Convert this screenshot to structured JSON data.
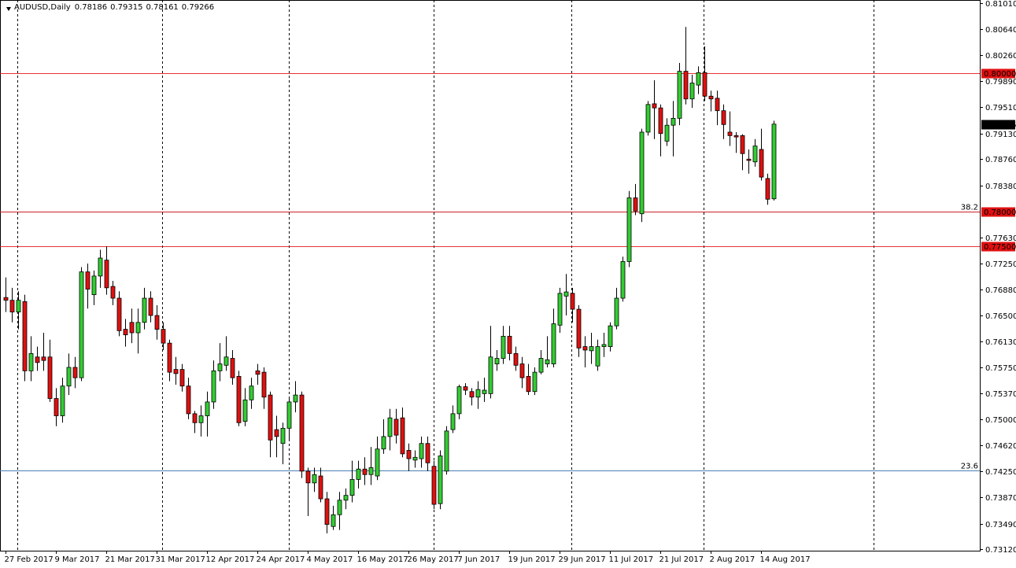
{
  "chart_data": {
    "type": "candlestick",
    "title": "AUDUSD,Daily",
    "up_color": "#32cd32",
    "down_color": "#e01010",
    "wick_color": "#000000",
    "grid": false,
    "categories": [
      "27 Feb 2017",
      null,
      null,
      null,
      null,
      null,
      null,
      null,
      "9 Mar 2017",
      null,
      null,
      null,
      null,
      null,
      null,
      null,
      "21 Mar 2017",
      null,
      null,
      null,
      null,
      null,
      null,
      null,
      "31 Mar 2017",
      null,
      null,
      null,
      null,
      null,
      null,
      null,
      "12 Apr 2017",
      null,
      null,
      null,
      null,
      null,
      null,
      null,
      "24 Apr 2017",
      null,
      null,
      null,
      null,
      null,
      null,
      null,
      "4 May 2017",
      null,
      null,
      null,
      null,
      null,
      null,
      null,
      "16 May 2017",
      null,
      null,
      null,
      null,
      null,
      null,
      null,
      "26 May 2017",
      null,
      null,
      null,
      null,
      null,
      null,
      null,
      "7 Jun 2017",
      null,
      null,
      null,
      null,
      null,
      null,
      null,
      "19 Jun 2017",
      null,
      null,
      null,
      null,
      null,
      null,
      null,
      "29 Jun 2017",
      null,
      null,
      null,
      null,
      null,
      null,
      null,
      "11 Jul 2017",
      null,
      null,
      null,
      null,
      null,
      null,
      null,
      "21 Jul 2017",
      null,
      null,
      null,
      null,
      null,
      null,
      null,
      "2 Aug 2017",
      null,
      null,
      null,
      null,
      null,
      null,
      null,
      "14 Aug 2017",
      null,
      null
    ],
    "open": [
      0.7676,
      0.7672,
      0.7655,
      0.767,
      0.757,
      0.759,
      0.759,
      0.759,
      0.753,
      0.7505,
      0.7548,
      0.7575,
      0.756,
      0.7713,
      0.768,
      0.7707,
      0.773,
      0.7692,
      0.7675,
      0.763,
      0.764,
      0.7625,
      0.764,
      0.7675,
      0.765,
      0.763,
      0.761,
      0.7572,
      0.7572,
      0.7548,
      0.7508,
      0.7495,
      0.7505,
      0.7525,
      0.757,
      0.7578,
      0.7588,
      0.7562,
      0.7497,
      0.7528,
      0.757,
      0.7568,
      0.7535,
      0.7485,
      0.7465,
      0.7487,
      0.7525,
      0.7535,
      0.7425,
      0.7408,
      0.7418,
      0.7385,
      0.7345,
      0.7362,
      0.7383,
      0.739,
      0.7413,
      0.7428,
      0.742,
      0.7418,
      0.7457,
      0.7475,
      0.75,
      0.7502,
      0.7455,
      0.7441,
      0.7443,
      0.7465,
      0.7432,
      0.7378,
      0.7425,
      0.7485,
      0.7508,
      0.7547,
      0.754,
      0.7532,
      0.7537,
      0.7537,
      0.758,
      0.7588,
      0.762,
      0.7595,
      0.758,
      0.7562,
      0.754,
      0.7568,
      0.758,
      0.758,
      0.7636,
      0.7678,
      0.7682,
      0.7659,
      0.7605,
      0.7599,
      0.7577,
      0.7605,
      0.7605,
      0.7635,
      0.7675,
      0.7728,
      0.782,
      0.7797,
      0.7915,
      0.7956,
      0.795,
      0.7902,
      0.7925,
      0.7935,
      0.8003,
      0.7963,
      0.7983,
      0.8001,
      0.7967,
      0.7964,
      0.7946,
      0.7915,
      0.791,
      0.791,
      0.7876,
      0.7872,
      0.789,
      0.7848,
      0.78186
    ],
    "high": [
      0.7705,
      0.769,
      0.7685,
      0.768,
      0.762,
      0.7605,
      0.7625,
      0.7615,
      0.7545,
      0.756,
      0.7595,
      0.759,
      0.772,
      0.7725,
      0.7715,
      0.7745,
      0.775,
      0.77,
      0.7685,
      0.7645,
      0.766,
      0.766,
      0.769,
      0.7685,
      0.7665,
      0.764,
      0.7615,
      0.759,
      0.758,
      0.756,
      0.7512,
      0.752,
      0.754,
      0.7585,
      0.761,
      0.762,
      0.76,
      0.757,
      0.7545,
      0.756,
      0.758,
      0.7575,
      0.754,
      0.7505,
      0.7495,
      0.753,
      0.7555,
      0.754,
      0.743,
      0.743,
      0.743,
      0.7395,
      0.7375,
      0.7395,
      0.74,
      0.744,
      0.744,
      0.7445,
      0.746,
      0.7475,
      0.75,
      0.7515,
      0.7515,
      0.7517,
      0.7465,
      0.7455,
      0.7475,
      0.7475,
      0.744,
      0.7455,
      0.749,
      0.752,
      0.755,
      0.7552,
      0.7545,
      0.7555,
      0.756,
      0.7635,
      0.76,
      0.7635,
      0.7635,
      0.7605,
      0.759,
      0.758,
      0.7575,
      0.76,
      0.762,
      0.766,
      0.769,
      0.771,
      0.769,
      0.7665,
      0.762,
      0.7625,
      0.7615,
      0.7625,
      0.764,
      0.769,
      0.7735,
      0.783,
      0.784,
      0.792,
      0.796,
      0.799,
      0.7955,
      0.7935,
      0.796,
      0.8015,
      0.8067,
      0.7998,
      0.801,
      0.8039,
      0.7975,
      0.7975,
      0.7955,
      0.7945,
      0.7915,
      0.7912,
      0.789,
      0.7905,
      0.792,
      0.7855,
      0.79315
    ],
    "low": [
      0.7655,
      0.764,
      0.763,
      0.7555,
      0.7555,
      0.757,
      0.757,
      0.7525,
      0.749,
      0.7495,
      0.7535,
      0.7545,
      0.7555,
      0.766,
      0.7665,
      0.769,
      0.768,
      0.7665,
      0.762,
      0.7605,
      0.761,
      0.7595,
      0.763,
      0.764,
      0.7615,
      0.76,
      0.7555,
      0.755,
      0.754,
      0.75,
      0.748,
      0.7475,
      0.7475,
      0.7515,
      0.7555,
      0.757,
      0.755,
      0.749,
      0.749,
      0.7515,
      0.755,
      0.7515,
      0.7445,
      0.7445,
      0.7435,
      0.747,
      0.751,
      0.7415,
      0.736,
      0.7395,
      0.738,
      0.7335,
      0.734,
      0.734,
      0.737,
      0.738,
      0.74,
      0.7405,
      0.7405,
      0.7412,
      0.745,
      0.7455,
      0.7465,
      0.7445,
      0.7425,
      0.743,
      0.743,
      0.7425,
      0.737,
      0.737,
      0.742,
      0.748,
      0.75,
      0.7535,
      0.752,
      0.7515,
      0.7525,
      0.753,
      0.757,
      0.758,
      0.7585,
      0.757,
      0.7545,
      0.7535,
      0.7535,
      0.7565,
      0.7575,
      0.7575,
      0.7625,
      0.765,
      0.764,
      0.759,
      0.7575,
      0.758,
      0.757,
      0.759,
      0.7598,
      0.763,
      0.767,
      0.772,
      0.7795,
      0.7785,
      0.791,
      0.7905,
      0.788,
      0.7895,
      0.788,
      0.7925,
      0.7955,
      0.795,
      0.797,
      0.796,
      0.7945,
      0.7925,
      0.7905,
      0.7895,
      0.7885,
      0.786,
      0.7855,
      0.7865,
      0.7845,
      0.781,
      0.78161
    ],
    "close": [
      0.7672,
      0.7655,
      0.7672,
      0.757,
      0.7595,
      0.7582,
      0.7585,
      0.753,
      0.7505,
      0.7548,
      0.7575,
      0.756,
      0.7713,
      0.7688,
      0.7707,
      0.7733,
      0.769,
      0.7675,
      0.7628,
      0.7622,
      0.7625,
      0.764,
      0.7675,
      0.765,
      0.763,
      0.761,
      0.7568,
      0.7566,
      0.7548,
      0.7508,
      0.7495,
      0.7505,
      0.7525,
      0.757,
      0.758,
      0.759,
      0.756,
      0.7495,
      0.7528,
      0.7548,
      0.7565,
      0.7532,
      0.747,
      0.7475,
      0.7487,
      0.7525,
      0.7535,
      0.7425,
      0.7408,
      0.742,
      0.7385,
      0.7348,
      0.7362,
      0.7383,
      0.739,
      0.7413,
      0.7428,
      0.742,
      0.743,
      0.7457,
      0.7475,
      0.7502,
      0.7477,
      0.745,
      0.7443,
      0.7445,
      0.7465,
      0.7437,
      0.7377,
      0.7447,
      0.7483,
      0.7508,
      0.7547,
      0.7542,
      0.7532,
      0.7543,
      0.7542,
      0.759,
      0.7588,
      0.762,
      0.7595,
      0.7578,
      0.756,
      0.754,
      0.7568,
      0.7588,
      0.7586,
      0.7638,
      0.7682,
      0.7684,
      0.7659,
      0.7603,
      0.76,
      0.7605,
      0.7605,
      0.7608,
      0.7635,
      0.7675,
      0.7728,
      0.782,
      0.7801,
      0.7915,
      0.7955,
      0.795,
      0.7913,
      0.7925,
      0.7935,
      0.8003,
      0.7963,
      0.7986,
      0.8001,
      0.7967,
      0.7963,
      0.7946,
      0.7926,
      0.791,
      0.7908,
      0.7884,
      0.7874,
      0.7895,
      0.785,
      0.7818,
      0.79266
    ],
    "ylim": [
      0.731,
      0.8106
    ],
    "yticks": [
      {
        "value": 0.8101,
        "label": "0.81010"
      },
      {
        "value": 0.8064,
        "label": "0.80640"
      },
      {
        "value": 0.8026,
        "label": "0.80260"
      },
      {
        "value": 0.7989,
        "label": "0.79890"
      },
      {
        "value": 0.7951,
        "label": "0.79510"
      },
      {
        "value": 0.7913,
        "label": "0.79130"
      },
      {
        "value": 0.7876,
        "label": "0.78760"
      },
      {
        "value": 0.7838,
        "label": "0.78380"
      },
      {
        "value": 0.7763,
        "label": "0.77630"
      },
      {
        "value": 0.7725,
        "label": "0.77250"
      },
      {
        "value": 0.7688,
        "label": "0.76880"
      },
      {
        "value": 0.765,
        "label": "0.76500"
      },
      {
        "value": 0.7613,
        "label": "0.76130"
      },
      {
        "value": 0.7575,
        "label": "0.75750"
      },
      {
        "value": 0.7537,
        "label": "0.75370"
      },
      {
        "value": 0.75,
        "label": "0.75000"
      },
      {
        "value": 0.7462,
        "label": "0.74620"
      },
      {
        "value": 0.7425,
        "label": "0.74250"
      },
      {
        "value": 0.7387,
        "label": "0.73870"
      },
      {
        "value": 0.7349,
        "label": "0.73490"
      },
      {
        "value": 0.7312,
        "label": "0.73120"
      }
    ],
    "hlines": [
      {
        "value": 0.8,
        "label": "0.80000"
      },
      {
        "value": 0.78,
        "label": "0.78000"
      },
      {
        "value": 0.775,
        "label": "0.77500"
      }
    ],
    "hline_color": "#e01010",
    "fib_levels": [
      {
        "value": 0.78,
        "label": "38.2"
      },
      {
        "value": 0.7426,
        "label": "23.6"
      }
    ],
    "fib_color": "#4a7fb5"
  }
}
